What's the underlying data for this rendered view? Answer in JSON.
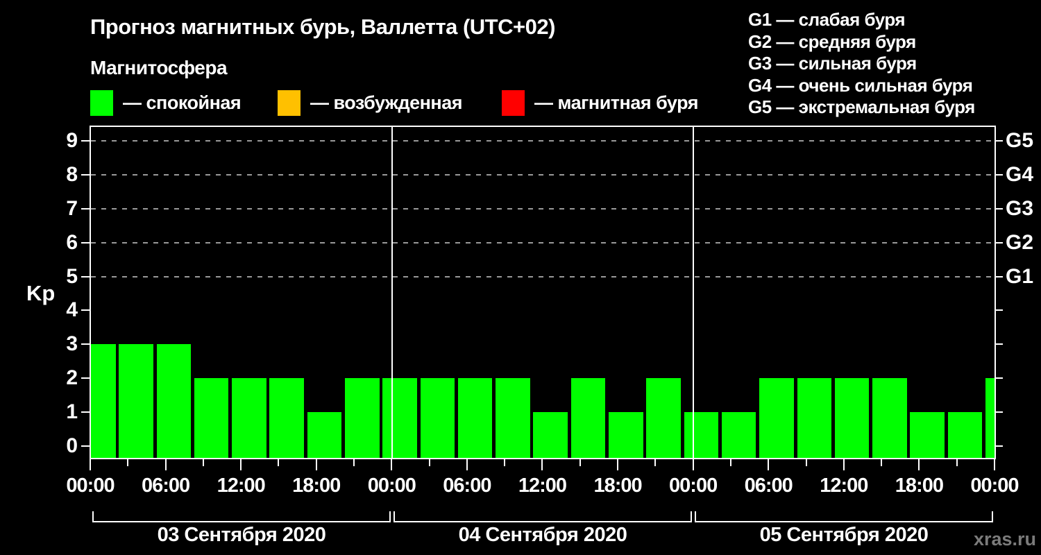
{
  "title": "Прогноз магнитных бурь, Валлетта (UTC+02)",
  "subtitle": "Магнитосфера",
  "legend": {
    "items": [
      {
        "label": "— спокойная",
        "color": "#00ff00"
      },
      {
        "label": "— возбужденная",
        "color": "#ffc000"
      },
      {
        "label": "— магнитная буря",
        "color": "#ff0000"
      }
    ]
  },
  "storm_scale": {
    "items": [
      {
        "text": "G1 — слабая буря"
      },
      {
        "text": "G2 — средняя буря"
      },
      {
        "text": "G3 — сильная буря"
      },
      {
        "text": "G4 — очень сильная буря"
      },
      {
        "text": "G5 — экстремальная буря"
      }
    ]
  },
  "watermark": "xras.ru",
  "chart_data": {
    "type": "bar",
    "ylabel": "Kp",
    "ylim": [
      0,
      9
    ],
    "interval_hours": 3,
    "bar_color": "#00ff00",
    "grid": "dashed horizontal lines at storm levels only",
    "gridlines_at": [
      5,
      6,
      7,
      8,
      9
    ],
    "y_tick_labels": [
      "0",
      "1",
      "2",
      "3",
      "4",
      "5",
      "6",
      "7",
      "8",
      "9"
    ],
    "g_levels": [
      {
        "kp": 5,
        "label": "G1"
      },
      {
        "kp": 6,
        "label": "G2"
      },
      {
        "kp": 7,
        "label": "G3"
      },
      {
        "kp": 8,
        "label": "G4"
      },
      {
        "kp": 9,
        "label": "G5"
      }
    ],
    "x_tick_labels": [
      "00:00",
      "06:00",
      "12:00",
      "18:00",
      "00:00",
      "06:00",
      "12:00",
      "18:00",
      "00:00",
      "06:00",
      "12:00",
      "18:00",
      "00:00"
    ],
    "days": [
      {
        "date": "03 Сентября 2020",
        "values": [
          3,
          3,
          3,
          2,
          2,
          2,
          1,
          2
        ]
      },
      {
        "date": "04 Сентября 2020",
        "values": [
          2,
          2,
          2,
          2,
          1,
          2,
          1,
          2
        ]
      },
      {
        "date": "05 Сентября 2020",
        "values": [
          1,
          1,
          2,
          2,
          2,
          2,
          1,
          1
        ]
      }
    ],
    "next_interval_partial_value": 2
  }
}
